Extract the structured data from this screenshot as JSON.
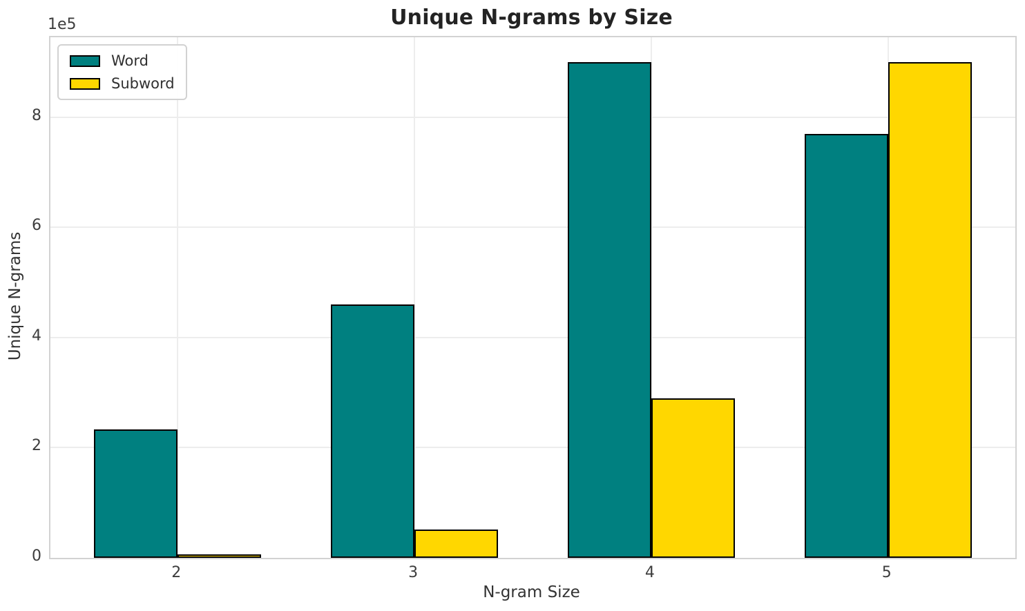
{
  "chart_data": {
    "type": "bar",
    "title": "Unique N-grams by Size",
    "xlabel": "N-gram Size",
    "ylabel": "Unique N-grams",
    "categories": [
      "2",
      "3",
      "4",
      "5"
    ],
    "series": [
      {
        "name": "Word",
        "color": "#008080",
        "values": [
          233000,
          460000,
          900000,
          770000
        ]
      },
      {
        "name": "Subword",
        "color": "#FFD700",
        "values": [
          6000,
          52000,
          290000,
          900000
        ]
      }
    ],
    "bar_edge_color": "#000000",
    "ylim": [
      0,
      945000
    ],
    "yticks": [
      0,
      200000,
      400000,
      600000,
      800000
    ],
    "ytick_labels": [
      "0",
      "2",
      "4",
      "6",
      "8"
    ],
    "offset_text": "1e5",
    "grid": true,
    "grid_color": "#ededed",
    "legend_position": "upper left",
    "background_color": "#ffffff"
  }
}
